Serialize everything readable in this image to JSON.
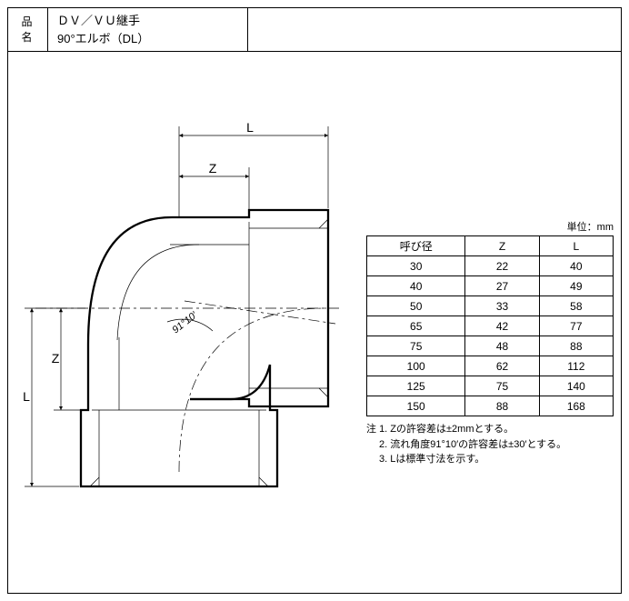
{
  "header": {
    "label_top": "品",
    "label_bottom": "名",
    "line1": "ＤＶ／ＶＵ継手",
    "line2": "90°エルボ（DL）"
  },
  "diagram": {
    "dim_labels": {
      "L_top": "L",
      "Z_top": "Z",
      "Z_left": "Z",
      "L_left": "L"
    },
    "angle_label": "91°10′",
    "colors": {
      "stroke": "#000000"
    }
  },
  "table": {
    "unit": "単位：mm",
    "columns": [
      "呼び径",
      "Z",
      "L"
    ],
    "rows": [
      [
        "30",
        "22",
        "40"
      ],
      [
        "40",
        "27",
        "49"
      ],
      [
        "50",
        "33",
        "58"
      ],
      [
        "65",
        "42",
        "77"
      ],
      [
        "75",
        "48",
        "88"
      ],
      [
        "100",
        "62",
        "112"
      ],
      [
        "125",
        "75",
        "140"
      ],
      [
        "150",
        "88",
        "168"
      ]
    ]
  },
  "notes": {
    "prefix": "注",
    "items": [
      "1. Zの許容差は±2mmとする。",
      "2. 流れ角度91°10′の許容差は±30′とする。",
      "3. Lは標準寸法を示す。"
    ]
  }
}
